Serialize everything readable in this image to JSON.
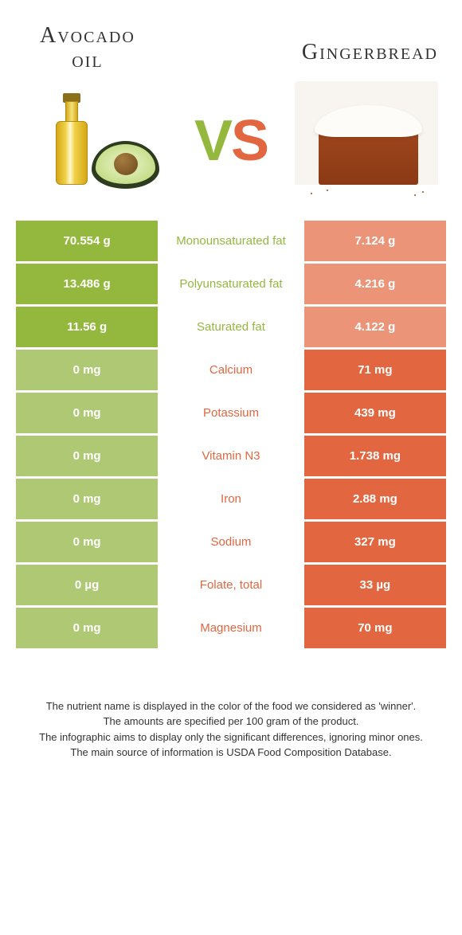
{
  "header": {
    "left_title_line1": "Avocado",
    "left_title_line2": "oil",
    "right_title": "Gingerbread"
  },
  "vs": {
    "v": "V",
    "s": "S"
  },
  "colors": {
    "left": "#94b83d",
    "left_dim": "#afc873",
    "right": "#e2663f",
    "right_dim": "#eb9478",
    "background": "#ffffff"
  },
  "rows": [
    {
      "nutrient": "Monounsaturated fat",
      "left": "70.554 g",
      "right": "7.124 g",
      "winner": "left"
    },
    {
      "nutrient": "Polyunsaturated fat",
      "left": "13.486 g",
      "right": "4.216 g",
      "winner": "left"
    },
    {
      "nutrient": "Saturated fat",
      "left": "11.56 g",
      "right": "4.122 g",
      "winner": "left"
    },
    {
      "nutrient": "Calcium",
      "left": "0 mg",
      "right": "71 mg",
      "winner": "right"
    },
    {
      "nutrient": "Potassium",
      "left": "0 mg",
      "right": "439 mg",
      "winner": "right"
    },
    {
      "nutrient": "Vitamin N3",
      "left": "0 mg",
      "right": "1.738 mg",
      "winner": "right"
    },
    {
      "nutrient": "Iron",
      "left": "0 mg",
      "right": "2.88 mg",
      "winner": "right"
    },
    {
      "nutrient": "Sodium",
      "left": "0 mg",
      "right": "327 mg",
      "winner": "right"
    },
    {
      "nutrient": "Folate, total",
      "left": "0 µg",
      "right": "33 µg",
      "winner": "right"
    },
    {
      "nutrient": "Magnesium",
      "left": "0 mg",
      "right": "70 mg",
      "winner": "right"
    }
  ],
  "footer": {
    "line1": "The nutrient name is displayed in the color of the food we considered as 'winner'.",
    "line2": "The amounts are specified per 100 gram of the product.",
    "line3": "The infographic aims to display only the significant differences, ignoring minor ones.",
    "line4": "The main source of information is USDA Food Composition Database."
  },
  "typography": {
    "title_fontsize": 28,
    "vs_fontsize": 72,
    "cell_fontsize": 15,
    "footer_fontsize": 13
  }
}
